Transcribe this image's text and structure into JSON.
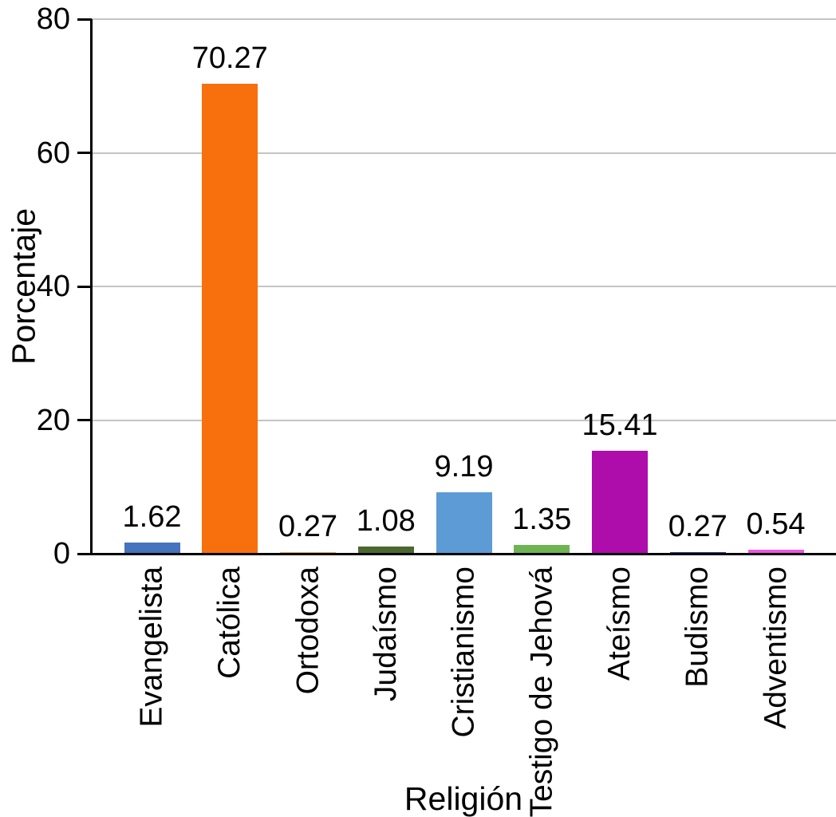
{
  "figure": {
    "background": "#ffffff"
  },
  "chart_data": {
    "type": "bar",
    "title": "",
    "xlabel": "Religión",
    "ylabel": "Porcentaje",
    "categories": [
      "Evangelista",
      "Católica",
      "Ortodoxa",
      "Judaísmo",
      "Cristianismo",
      "Testigo de Jehová",
      "Ateísmo",
      "Budismo",
      "Adventismo"
    ],
    "values": [
      1.62,
      70.27,
      0.27,
      1.08,
      9.19,
      1.35,
      15.41,
      0.27,
      0.54
    ],
    "value_labels": [
      "1.62",
      "70.27",
      "0.27",
      "1.08",
      "9.19",
      "1.35",
      "15.41",
      "0.27",
      "0.54"
    ],
    "bar_colors": [
      "#4673BE",
      "#F7700D",
      "#F0B229",
      "#4C682F",
      "#5C9BD5",
      "#6FB453",
      "#AE0CAB",
      "#1C3F94",
      "#EF53E2"
    ],
    "ylim": [
      0,
      80
    ],
    "yticks": [
      0,
      20,
      40,
      60,
      80
    ],
    "grid": "horizontal-only",
    "legend": "none",
    "axis_color": "#000000",
    "grid_color": "#c4c4c4"
  }
}
